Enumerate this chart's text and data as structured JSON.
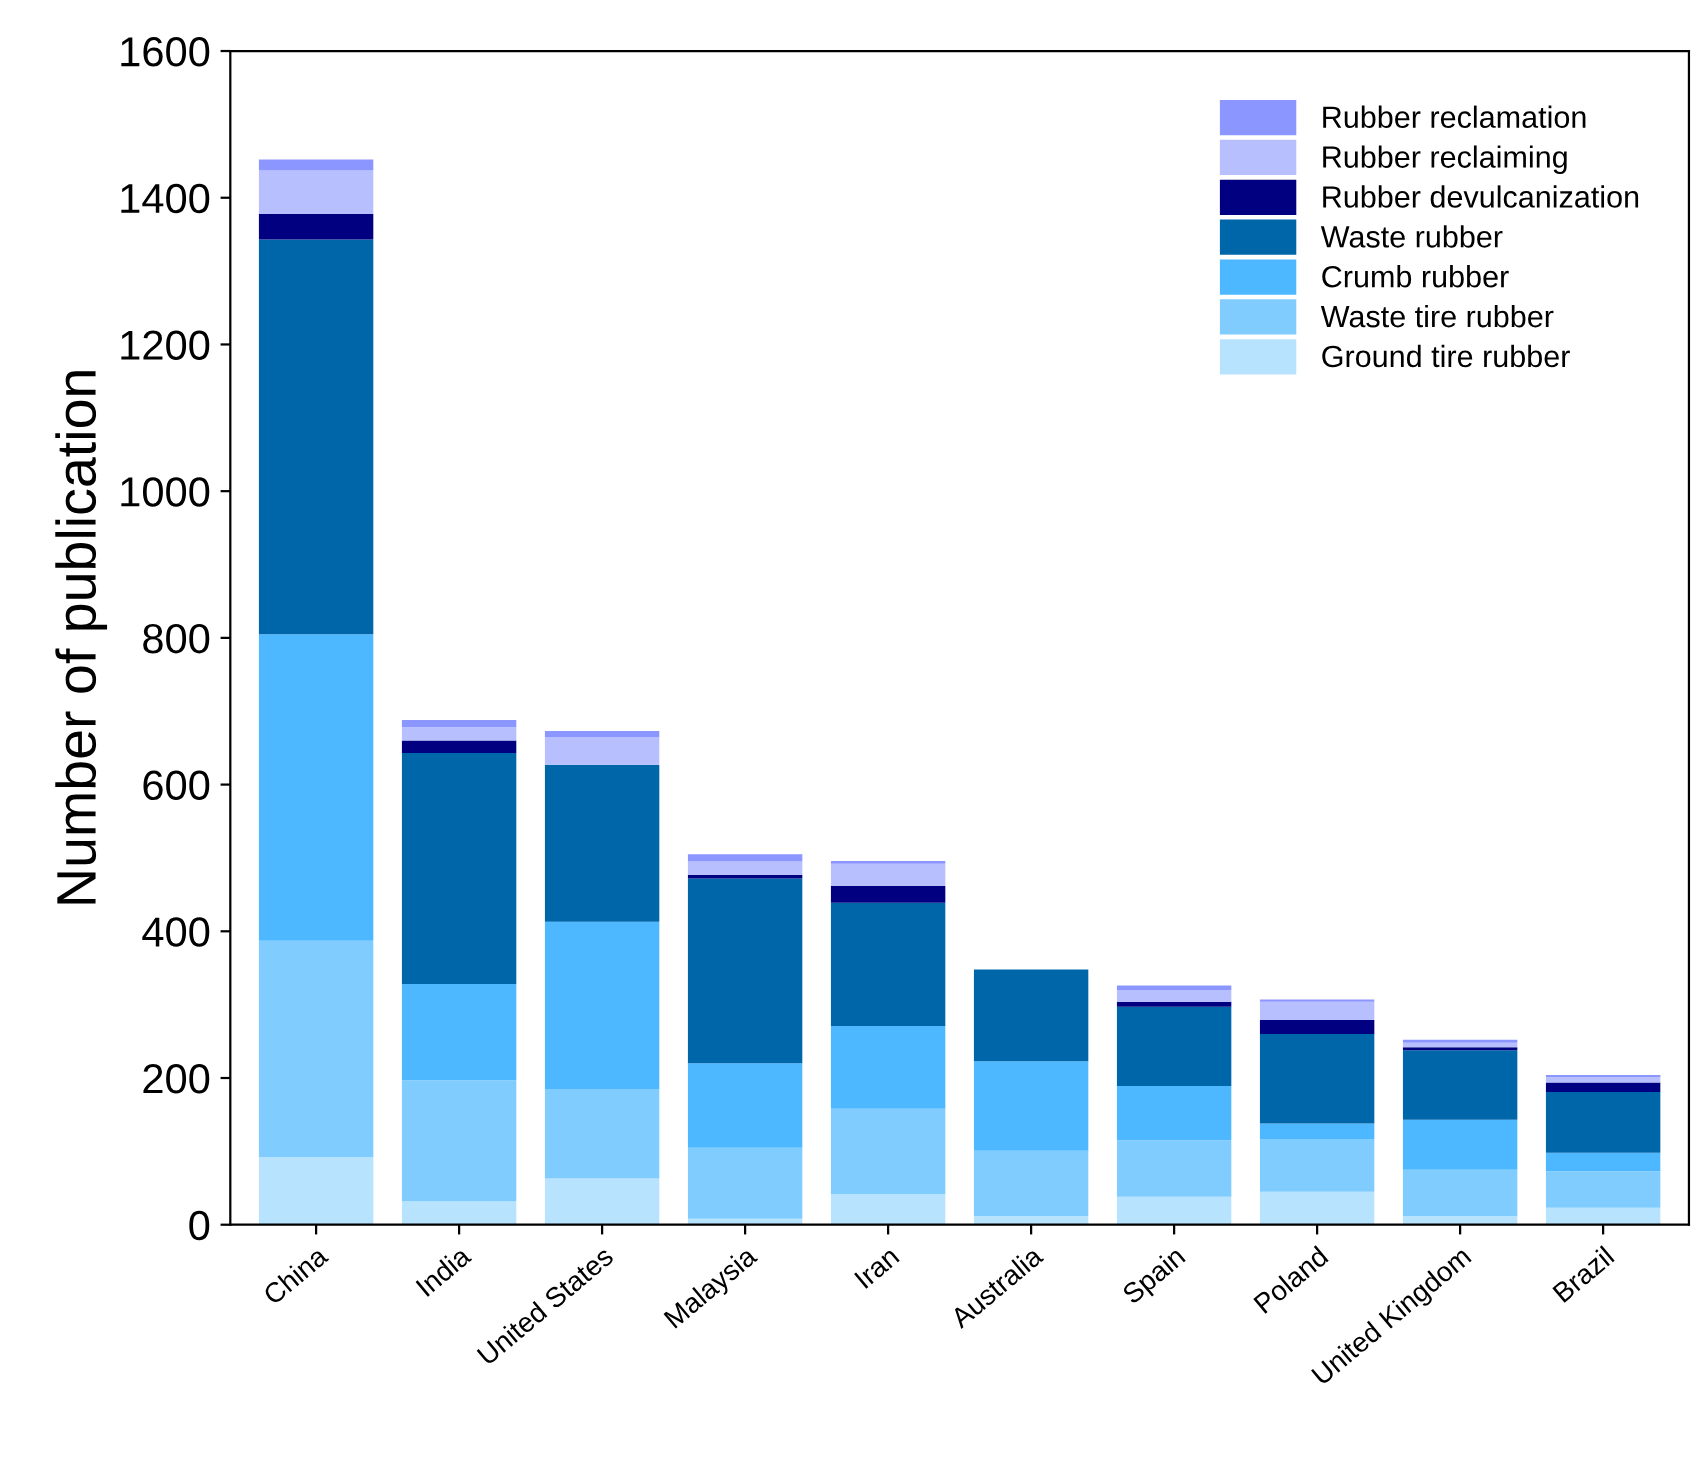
{
  "chart_data": {
    "type": "bar",
    "stacked": true,
    "ylabel": "Number of publication",
    "categories": [
      "China",
      "India",
      "United States",
      "Malaysia",
      "Iran",
      "Australia",
      "Spain",
      "Poland",
      "United Kingdom",
      "Brazil"
    ],
    "series": [
      {
        "name": "Ground tire rubber",
        "color": "#b8e3ff",
        "values": [
          92,
          32,
          63,
          8,
          42,
          12,
          38,
          45,
          12,
          23
        ]
      },
      {
        "name": "Waste tire rubber",
        "color": "#80ccff",
        "values": [
          295,
          165,
          122,
          97,
          116,
          89,
          77,
          72,
          63,
          50
        ]
      },
      {
        "name": "Crumb rubber",
        "color": "#4db8ff",
        "values": [
          418,
          131,
          228,
          115,
          113,
          122,
          74,
          21,
          68,
          25
        ]
      },
      {
        "name": "Waste rubber",
        "color": "#0066aa",
        "values": [
          538,
          315,
          214,
          252,
          168,
          125,
          108,
          122,
          95,
          83
        ]
      },
      {
        "name": "Rubber devulcanization",
        "color": "#000080",
        "values": [
          35,
          17,
          0,
          5,
          23,
          0,
          7,
          19,
          4,
          13
        ]
      },
      {
        "name": "Rubber reclaiming",
        "color": "#b8bfff",
        "values": [
          59,
          18,
          38,
          18,
          30,
          0,
          16,
          25,
          6,
          7
        ]
      },
      {
        "name": "Rubber reclamation",
        "color": "#8c96ff",
        "values": [
          15,
          10,
          8,
          10,
          4,
          0,
          6,
          3,
          4,
          3
        ]
      }
    ],
    "ylim": [
      0,
      1600
    ],
    "yticks": [
      0,
      200,
      400,
      600,
      800,
      1000,
      1200,
      1400,
      1600
    ],
    "grid": false,
    "legend": "top right"
  }
}
